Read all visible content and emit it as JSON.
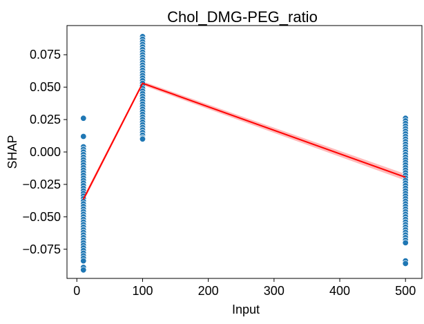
{
  "chart_data": {
    "type": "scatter",
    "title": "Chol_DMG-PEG_ratio",
    "xlabel": "Input",
    "ylabel": "SHAP",
    "xlim": [
      -15,
      525
    ],
    "ylim": [
      -0.0975,
      0.0975
    ],
    "x_ticks": [
      0,
      100,
      200,
      300,
      400,
      500
    ],
    "x_tick_labels": [
      "0",
      "100",
      "200",
      "300",
      "400",
      "500"
    ],
    "y_ticks": [
      -0.075,
      -0.05,
      -0.025,
      0.0,
      0.025,
      0.05,
      0.075
    ],
    "y_tick_labels": [
      "−0.075",
      "−0.050",
      "−0.025",
      "0.000",
      "0.025",
      "0.050",
      "0.075"
    ],
    "grid": false,
    "legend": "none",
    "colors": {
      "points": "#1f77b4",
      "trend": "#ff0000",
      "ci": "#ffb3b3"
    },
    "series": [
      {
        "kind": "points",
        "groups": [
          {
            "x": 10,
            "y": [
              0.026,
              0.012,
              0.004,
              0.002,
              0.0,
              -0.002,
              -0.004,
              -0.006,
              -0.008,
              -0.01,
              -0.012,
              -0.014,
              -0.016,
              -0.018,
              -0.02,
              -0.022,
              -0.024,
              -0.026,
              -0.028,
              -0.03,
              -0.032,
              -0.034,
              -0.036,
              -0.038,
              -0.04,
              -0.042,
              -0.044,
              -0.046,
              -0.048,
              -0.05,
              -0.052,
              -0.054,
              -0.056,
              -0.058,
              -0.06,
              -0.062,
              -0.064,
              -0.066,
              -0.068,
              -0.07,
              -0.072,
              -0.074,
              -0.076,
              -0.078,
              -0.08,
              -0.082,
              -0.084,
              -0.089,
              -0.091
            ]
          },
          {
            "x": 100,
            "y": [
              0.089,
              0.087,
              0.085,
              0.083,
              0.081,
              0.079,
              0.077,
              0.075,
              0.073,
              0.071,
              0.069,
              0.067,
              0.065,
              0.063,
              0.061,
              0.059,
              0.057,
              0.055,
              0.053,
              0.051,
              0.049,
              0.047,
              0.045,
              0.043,
              0.041,
              0.039,
              0.037,
              0.035,
              0.033,
              0.031,
              0.029,
              0.027,
              0.025,
              0.023,
              0.021,
              0.019,
              0.017,
              0.015,
              0.013,
              0.011,
              0.01
            ]
          },
          {
            "x": 500,
            "y": [
              0.026,
              0.024,
              0.022,
              0.02,
              0.018,
              0.016,
              0.014,
              0.012,
              0.01,
              0.008,
              0.006,
              0.004,
              0.002,
              0.0,
              -0.002,
              -0.004,
              -0.006,
              -0.008,
              -0.01,
              -0.012,
              -0.014,
              -0.016,
              -0.018,
              -0.02,
              -0.022,
              -0.024,
              -0.026,
              -0.028,
              -0.03,
              -0.032,
              -0.034,
              -0.036,
              -0.038,
              -0.04,
              -0.042,
              -0.044,
              -0.046,
              -0.048,
              -0.05,
              -0.052,
              -0.054,
              -0.056,
              -0.058,
              -0.06,
              -0.062,
              -0.064,
              -0.066,
              -0.068,
              -0.07,
              -0.084,
              -0.086
            ]
          }
        ]
      },
      {
        "kind": "line",
        "x": [
          10,
          100,
          500
        ],
        "y": [
          -0.0365,
          0.053,
          -0.0195
        ],
        "ci_low": [
          -0.0385,
          0.0515,
          -0.022
        ],
        "ci_high": [
          -0.0345,
          0.0545,
          -0.017
        ]
      }
    ]
  }
}
